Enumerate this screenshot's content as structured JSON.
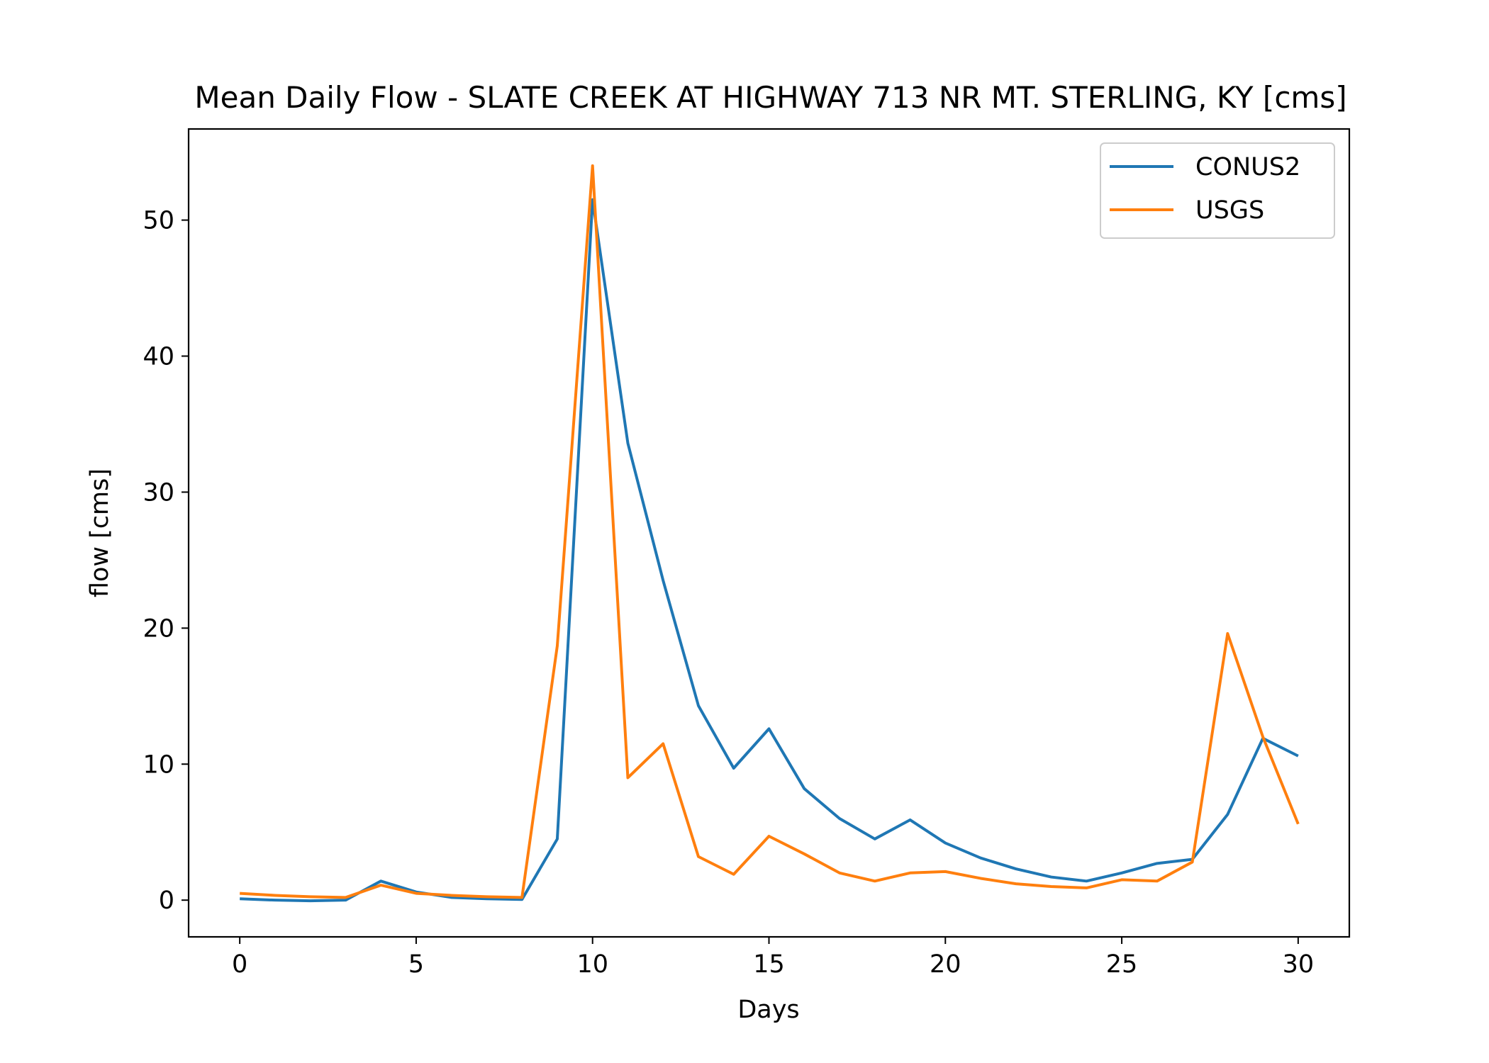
{
  "chart_data": {
    "type": "line",
    "title": "Mean Daily Flow - SLATE CREEK AT HIGHWAY 713 NR MT. STERLING, KY [cms]",
    "xlabel": "Days",
    "ylabel": "flow [cms]",
    "xlim": [
      -1.45,
      31.45
    ],
    "ylim": [
      -2.7,
      56.7
    ],
    "xticks": [
      0,
      5,
      10,
      15,
      20,
      25,
      30
    ],
    "yticks": [
      0,
      10,
      20,
      30,
      40,
      50
    ],
    "grid": false,
    "legend": "top-right",
    "x": [
      0,
      1,
      2,
      3,
      4,
      5,
      6,
      7,
      8,
      9,
      10,
      11,
      12,
      13,
      14,
      15,
      16,
      17,
      18,
      19,
      20,
      21,
      22,
      23,
      24,
      25,
      26,
      27,
      28,
      29,
      30
    ],
    "series": [
      {
        "name": "CONUS2",
        "color": "#1f77b4",
        "values": [
          0.1,
          0.0,
          -0.05,
          0.0,
          1.4,
          0.6,
          0.2,
          0.1,
          0.05,
          4.5,
          51.5,
          33.6,
          23.5,
          14.3,
          9.7,
          12.6,
          8.2,
          6.0,
          4.5,
          5.9,
          4.2,
          3.1,
          2.3,
          1.7,
          1.4,
          2.0,
          2.7,
          3.0,
          6.3,
          11.9,
          10.6
        ]
      },
      {
        "name": "USGS",
        "color": "#ff7f0e",
        "values": [
          0.5,
          0.35,
          0.25,
          0.2,
          1.1,
          0.5,
          0.35,
          0.25,
          0.2,
          18.7,
          54.0,
          9.0,
          11.5,
          3.2,
          1.9,
          4.7,
          3.4,
          2.0,
          1.4,
          2.0,
          2.1,
          1.6,
          1.2,
          1.0,
          0.9,
          1.5,
          1.4,
          2.8,
          19.6,
          12.0,
          5.6
        ]
      }
    ]
  }
}
